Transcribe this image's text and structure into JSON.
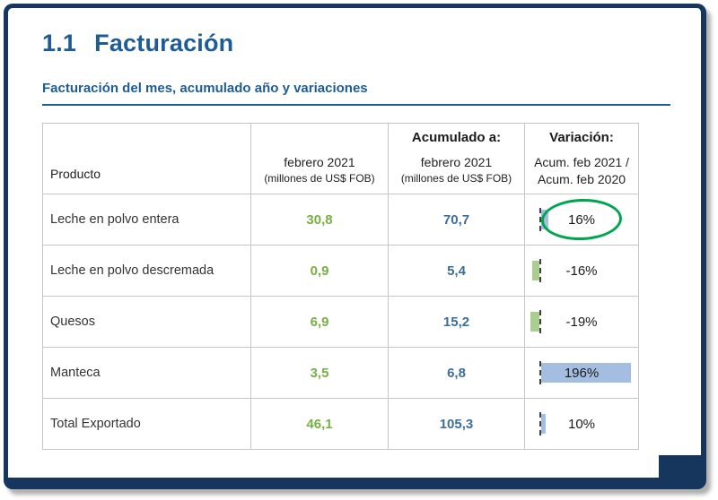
{
  "page": {
    "section_number": "1.1",
    "section_title": "Facturación",
    "subtitle": "Facturación del mes, acumulado año y variaciones"
  },
  "table": {
    "header": {
      "product": "Producto",
      "month_line1": "febrero 2021",
      "month_line2": "(millones de US$ FOB)",
      "accum_title": "Acumulado a:",
      "accum_line1": "febrero 2021",
      "accum_line2": "(millones de US$ FOB)",
      "variation_title": "Variación:",
      "variation_line1": "Acum. feb 2021 /",
      "variation_line2": "Acum. feb 2020"
    },
    "rows": [
      {
        "product": "Leche en polvo entera",
        "month": "30,8",
        "accum": "70,7",
        "variation": "16%",
        "variation_value": 16,
        "highlighted": true
      },
      {
        "product": "Leche en polvo descremada",
        "month": "0,9",
        "accum": "5,4",
        "variation": "-16%",
        "variation_value": -16,
        "highlighted": false
      },
      {
        "product": "Quesos",
        "month": "6,9",
        "accum": "15,2",
        "variation": "-19%",
        "variation_value": -19,
        "highlighted": false
      },
      {
        "product": "Manteca",
        "month": "3,5",
        "accum": "6,8",
        "variation": "196%",
        "variation_value": 196,
        "highlighted": false
      },
      {
        "product": "Total Exportado",
        "month": "46,1",
        "accum": "105,3",
        "variation": "10%",
        "variation_value": 10,
        "highlighted": false
      }
    ]
  },
  "colors": {
    "frame_navy": "#17365D",
    "heading_blue": "#1E5C97",
    "value_green": "#76B043",
    "value_blue": "#3C6E9C",
    "bar_positive": "#A3BEE0",
    "bar_negative": "#A9CE8E",
    "annotation_green": "#00A550"
  },
  "chart_data": {
    "type": "table",
    "title": "Facturación del mes, acumulado año y variaciones",
    "columns": [
      "Producto",
      "febrero 2021 (millones de US$ FOB)",
      "Acumulado a: febrero 2021 (millones de US$ FOB)",
      "Variación: Acum. feb 2021 / Acum. feb 2020 (%)"
    ],
    "rows": [
      [
        "Leche en polvo entera",
        30.8,
        70.7,
        16
      ],
      [
        "Leche en polvo descremada",
        0.9,
        5.4,
        -16
      ],
      [
        "Quesos",
        6.9,
        15.2,
        -19
      ],
      [
        "Manteca",
        3.5,
        6.8,
        196
      ],
      [
        "Total Exportado",
        46.1,
        105.3,
        10
      ]
    ],
    "bar_axis": "left of variation column, dashed",
    "bar_scale_max_pct": 196,
    "annotation": "green ellipse circling 16% in first row"
  }
}
